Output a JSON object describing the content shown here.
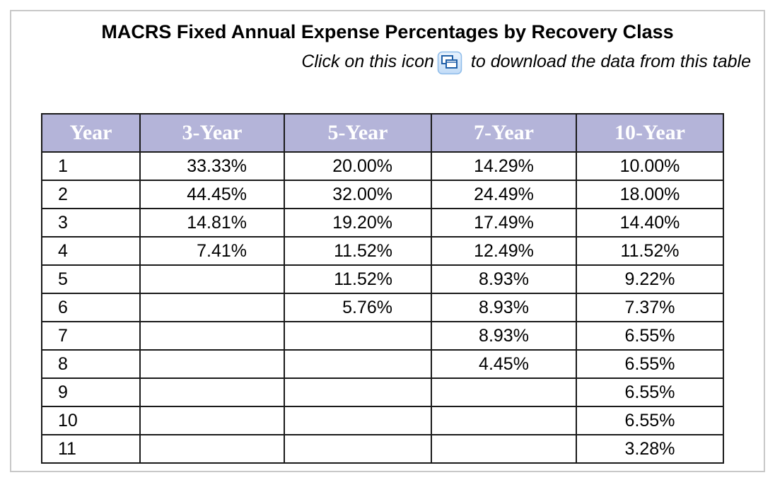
{
  "title": "MACRS Fixed Annual Expense Percentages by Recovery Class",
  "subtitle": {
    "before": "Click on this icon",
    "after": "to download the data from this table"
  },
  "icons": {
    "download": "download-data-icon"
  },
  "colors": {
    "header_bg": "#b4b4d9",
    "icon_blue": "#3b8de0"
  },
  "table": {
    "headers": [
      "Year",
      "3-Year",
      "5-Year",
      "7-Year",
      "10-Year"
    ],
    "rows": [
      [
        "1",
        "33.33%",
        "20.00%",
        "14.29%",
        "10.00%"
      ],
      [
        "2",
        "44.45%",
        "32.00%",
        "24.49%",
        "18.00%"
      ],
      [
        "3",
        "14.81%",
        "19.20%",
        "17.49%",
        "14.40%"
      ],
      [
        "4",
        "7.41%",
        "11.52%",
        "12.49%",
        "11.52%"
      ],
      [
        "5",
        "",
        "11.52%",
        "8.93%",
        "9.22%"
      ],
      [
        "6",
        "",
        "5.76%",
        "8.93%",
        "7.37%"
      ],
      [
        "7",
        "",
        "",
        "8.93%",
        "6.55%"
      ],
      [
        "8",
        "",
        "",
        "4.45%",
        "6.55%"
      ],
      [
        "9",
        "",
        "",
        "",
        "6.55%"
      ],
      [
        "10",
        "",
        "",
        "",
        "6.55%"
      ],
      [
        "11",
        "",
        "",
        "",
        "3.28%"
      ]
    ]
  }
}
